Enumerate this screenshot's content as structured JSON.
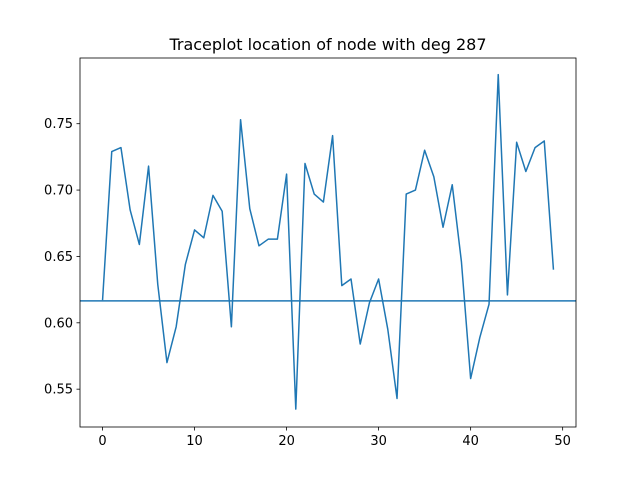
{
  "chart_data": {
    "type": "line",
    "title": "Traceplot location of node with deg 287",
    "xlabel": "",
    "ylabel": "",
    "xlim": [
      -2.45,
      51.45
    ],
    "ylim": [
      0.5215,
      0.7995
    ],
    "x_ticks": [
      0,
      10,
      20,
      30,
      40,
      50
    ],
    "y_ticks": [
      0.55,
      0.6,
      0.65,
      0.7,
      0.75
    ],
    "grid": false,
    "legend": "none",
    "series": [
      {
        "color": "#1f77b4",
        "x": [
          0,
          1,
          2,
          3,
          4,
          5,
          6,
          7,
          8,
          9,
          10,
          11,
          12,
          13,
          14,
          15,
          16,
          17,
          18,
          19,
          20,
          21,
          22,
          23,
          24,
          25,
          26,
          27,
          28,
          29,
          30,
          31,
          32,
          33,
          34,
          35,
          36,
          37,
          38,
          39,
          40,
          41,
          42,
          43,
          44,
          45,
          46,
          47,
          48,
          49
        ],
        "values": [
          0.617,
          0.729,
          0.732,
          0.685,
          0.659,
          0.718,
          0.629,
          0.57,
          0.597,
          0.644,
          0.67,
          0.664,
          0.696,
          0.684,
          0.597,
          0.753,
          0.686,
          0.658,
          0.663,
          0.663,
          0.712,
          0.535,
          0.72,
          0.697,
          0.691,
          0.741,
          0.628,
          0.633,
          0.584,
          0.615,
          0.633,
          0.595,
          0.543,
          0.697,
          0.7,
          0.73,
          0.71,
          0.672,
          0.704,
          0.646,
          0.558,
          0.589,
          0.614,
          0.787,
          0.621,
          0.736,
          0.714,
          0.732,
          0.737,
          0.64
        ]
      }
    ],
    "hlines": [
      {
        "y": 0.6165,
        "color": "#1f77b4"
      }
    ]
  }
}
